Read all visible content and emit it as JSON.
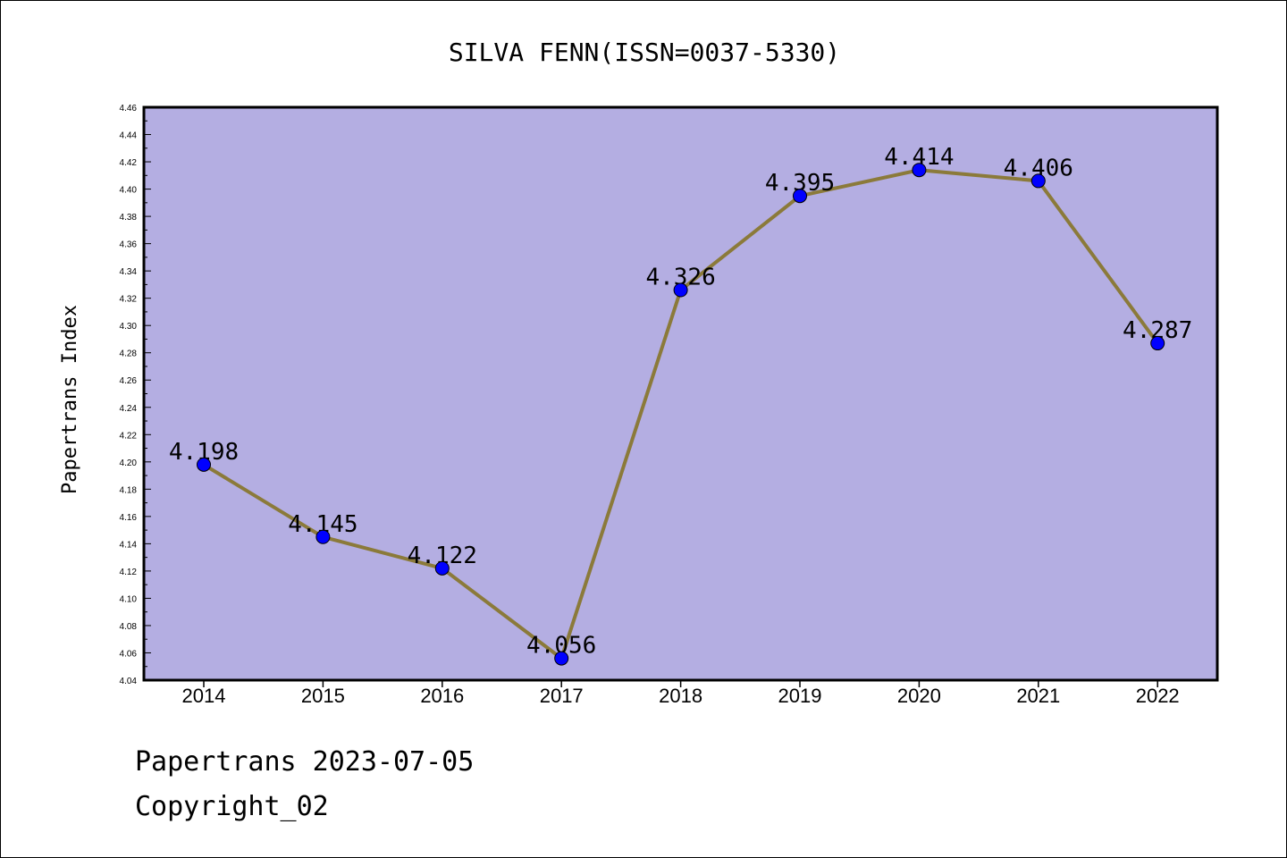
{
  "chart_data": {
    "type": "line",
    "title": "SILVA FENN(ISSN=0037-5330)",
    "ylabel": "Papertrans Index",
    "xlabel": "",
    "categories": [
      "2014",
      "2015",
      "2016",
      "2017",
      "2018",
      "2019",
      "2020",
      "2021",
      "2022"
    ],
    "values": [
      4.198,
      4.145,
      4.122,
      4.056,
      4.326,
      4.395,
      4.414,
      4.406,
      4.287
    ],
    "value_labels": [
      "4.198",
      "4.145",
      "4.122",
      "4.056",
      "4.326",
      "4.395",
      "4.414",
      "4.406",
      "4.287"
    ],
    "ylim": [
      4.04,
      4.46
    ],
    "yticks": [
      "4.04",
      "4.06",
      "4.08",
      "4.10",
      "4.12",
      "4.14",
      "4.16",
      "4.18",
      "4.20",
      "4.22",
      "4.24",
      "4.26",
      "4.28",
      "4.30",
      "4.32",
      "4.34",
      "4.36",
      "4.38",
      "4.40",
      "4.42",
      "4.44",
      "4.46"
    ],
    "grid": false,
    "colors": {
      "plot_background": "#b4aee2",
      "line": "#8b7a3a",
      "marker": "#0000ff"
    }
  },
  "footer": {
    "line1": "Papertrans 2023-07-05",
    "line2": "Copyright_02"
  }
}
